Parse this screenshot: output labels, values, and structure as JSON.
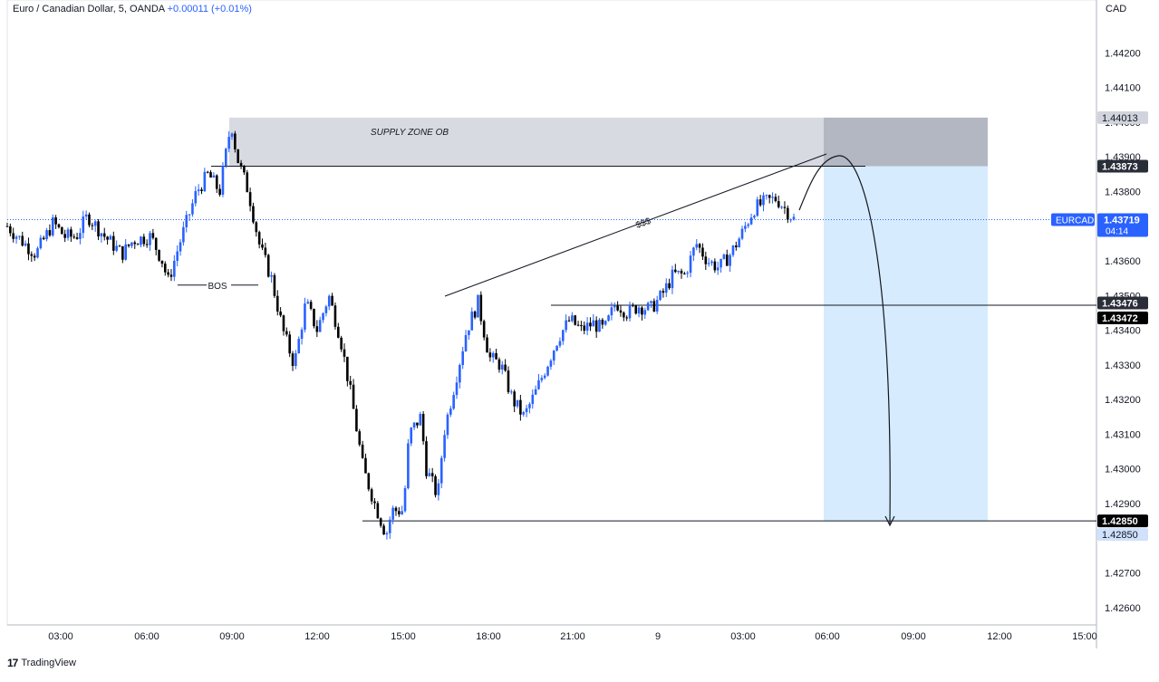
{
  "header": {
    "symbol_desc": "Euro / Canadian Dollar, 5, OANDA",
    "change": "+0.00011 (+0.01%)"
  },
  "axis": {
    "currency": "CAD"
  },
  "brand": {
    "logo_glyph": "17",
    "name": "TradingView"
  },
  "colors": {
    "up": "#2962ff",
    "down": "#000000",
    "zone_grey": "#d1d4dc",
    "zone_target": "#bbdefb",
    "price_line": "#2962ff",
    "label_dark": "#131722"
  },
  "chart_data": {
    "type": "candlestick",
    "title": "Euro / Canadian Dollar, 5, OANDA",
    "ylabel": "CAD",
    "ylim": [
      1.4255,
      1.443
    ],
    "y_ticks": [
      "1.42600",
      "1.42700",
      "1.42850",
      "1.42900",
      "1.43000",
      "1.43100",
      "1.43200",
      "1.43300",
      "1.43400",
      "1.43500",
      "1.43600",
      "1.43800",
      "1.43900",
      "1.44000",
      "1.44100",
      "1.44200"
    ],
    "x_ticks": [
      "03:00",
      "06:00",
      "09:00",
      "12:00",
      "15:00",
      "18:00",
      "21:00",
      "9",
      "03:00",
      "06:00",
      "09:00",
      "12:00",
      "15:00"
    ],
    "price_path": [
      [
        0,
        1.437
      ],
      [
        3,
        1.4365
      ],
      [
        5,
        1.4362
      ],
      [
        8,
        1.4371
      ],
      [
        10,
        1.4367
      ],
      [
        12,
        1.4367
      ],
      [
        14,
        1.4373
      ],
      [
        17,
        1.4367
      ],
      [
        20,
        1.4362
      ],
      [
        22,
        1.4366
      ],
      [
        25,
        1.4367
      ],
      [
        27,
        1.436
      ],
      [
        28,
        1.4354
      ],
      [
        30,
        1.4365
      ],
      [
        33,
        1.438
      ],
      [
        35,
        1.4385
      ],
      [
        37,
        1.438
      ],
      [
        39,
        1.44
      ],
      [
        40,
        1.439
      ],
      [
        42,
        1.438
      ],
      [
        44,
        1.4364
      ],
      [
        46,
        1.4355
      ],
      [
        48,
        1.434
      ],
      [
        50,
        1.433
      ],
      [
        52,
        1.4348
      ],
      [
        54,
        1.434
      ],
      [
        56,
        1.435
      ],
      [
        58,
        1.4338
      ],
      [
        60,
        1.432
      ],
      [
        62,
        1.43
      ],
      [
        64,
        1.429
      ],
      [
        66,
        1.4281
      ],
      [
        67,
        1.4288
      ],
      [
        69,
        1.4288
      ],
      [
        70,
        1.431
      ],
      [
        72,
        1.4315
      ],
      [
        73,
        1.43
      ],
      [
        75,
        1.4292
      ],
      [
        76,
        1.431
      ],
      [
        78,
        1.4325
      ],
      [
        80,
        1.434
      ],
      [
        82,
        1.4348
      ],
      [
        84,
        1.4332
      ],
      [
        86,
        1.433
      ],
      [
        88,
        1.432
      ],
      [
        90,
        1.4315
      ],
      [
        92,
        1.4322
      ],
      [
        94,
        1.433
      ],
      [
        96,
        1.4338
      ],
      [
        98,
        1.4343
      ],
      [
        100,
        1.434
      ],
      [
        102,
        1.4342
      ],
      [
        104,
        1.434
      ],
      [
        106,
        1.4348
      ],
      [
        108,
        1.4345
      ],
      [
        110,
        1.4347
      ],
      [
        112,
        1.4346
      ],
      [
        114,
        1.435
      ],
      [
        116,
        1.4356
      ],
      [
        118,
        1.4356
      ],
      [
        120,
        1.4365
      ],
      [
        122,
        1.436
      ],
      [
        124,
        1.4358
      ],
      [
        126,
        1.4362
      ],
      [
        128,
        1.4368
      ],
      [
        130,
        1.4375
      ],
      [
        132,
        1.4377
      ],
      [
        134,
        1.4378
      ],
      [
        136,
        1.4374
      ],
      [
        137,
        1.4372
      ]
    ],
    "annotations": [
      {
        "text": "SUPPLY ZONE OB",
        "type": "zone",
        "y_from": 1.43873,
        "y_to": 1.44013
      },
      {
        "text": "BOS",
        "type": "level",
        "y": 1.4353
      },
      {
        "text": "$$$",
        "type": "trendline"
      },
      {
        "text": "",
        "type": "level",
        "y": 1.43472
      },
      {
        "text": "",
        "type": "level",
        "y": 1.4285
      }
    ],
    "price_labels": [
      {
        "text": "1.44013",
        "y": 1.44013,
        "style": "grey"
      },
      {
        "text": "1.43873",
        "y": 1.43873,
        "style": "dark"
      },
      {
        "text": "1.43476",
        "y": 1.43476,
        "style": "dark"
      },
      {
        "text": "1.43472",
        "y": 1.43472,
        "style": "black"
      },
      {
        "text": "1.42850",
        "y": 1.4285,
        "style": "black"
      },
      {
        "text": "1.42850",
        "y": 1.4285,
        "style": "lightblue"
      }
    ],
    "current": {
      "symbol": "EURCAD",
      "price": "1.43719",
      "countdown": "04:14",
      "y": 1.43719
    },
    "trade": {
      "entry": 1.43873,
      "stop": 1.44013,
      "target": 1.4285
    }
  }
}
